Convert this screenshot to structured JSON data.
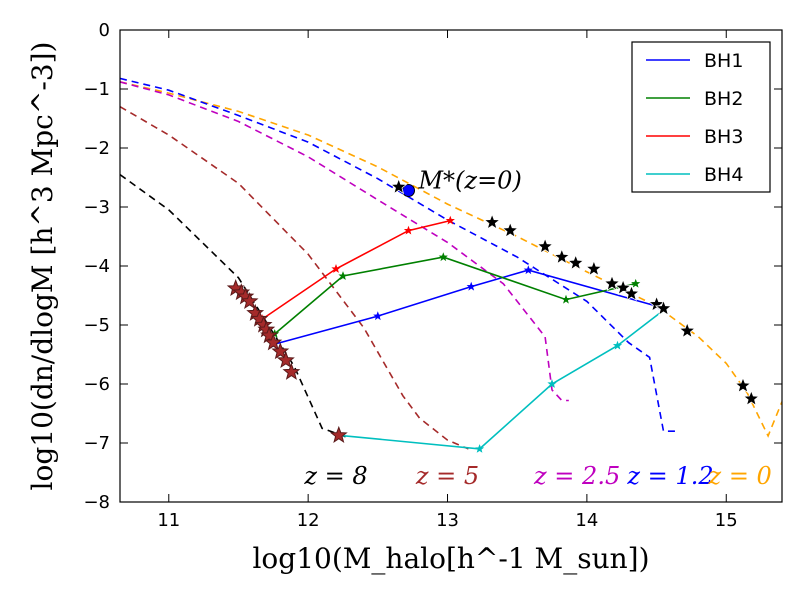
{
  "chart_data": {
    "type": "line",
    "xlabel": "log10(M_halo[h^-1 M_sun])",
    "ylabel": "log10(dn/dlogM [h^3 Mpc^-3])",
    "xlim": [
      10.65,
      15.4
    ],
    "ylim": [
      -8,
      0
    ],
    "xticks": [
      11,
      12,
      13,
      14,
      15
    ],
    "yticks": [
      0,
      -1,
      -2,
      -3,
      -4,
      -5,
      -6,
      -7,
      -8
    ],
    "xtick_labels": [
      "11",
      "12",
      "13",
      "14",
      "15"
    ],
    "ytick_labels": [
      "0",
      "−1",
      "−2",
      "−3",
      "−4",
      "−5",
      "−6",
      "−7",
      "−8"
    ],
    "annotation": {
      "text": "M*(z=0)",
      "x": 12.72,
      "y": -2.72
    },
    "mass_functions": [
      {
        "label": "z = 0",
        "color": "#ffa500",
        "points": [
          [
            10.65,
            -0.88
          ],
          [
            11,
            -1.07
          ],
          [
            11.5,
            -1.38
          ],
          [
            12,
            -1.78
          ],
          [
            12.5,
            -2.32
          ],
          [
            13,
            -2.95
          ],
          [
            13.5,
            -3.5
          ],
          [
            14,
            -4.1
          ],
          [
            14.5,
            -4.68
          ],
          [
            14.8,
            -5.2
          ],
          [
            15,
            -5.65
          ],
          [
            15.15,
            -6.15
          ],
          [
            15.3,
            -6.88
          ],
          [
            15.4,
            -6.3
          ]
        ]
      },
      {
        "label": "z = 1.2",
        "color": "#0000ff",
        "points": [
          [
            10.65,
            -0.82
          ],
          [
            11,
            -1.02
          ],
          [
            11.5,
            -1.45
          ],
          [
            12,
            -1.9
          ],
          [
            12.5,
            -2.52
          ],
          [
            13,
            -3.22
          ],
          [
            13.5,
            -3.85
          ],
          [
            14,
            -4.6
          ],
          [
            14.3,
            -5.3
          ],
          [
            14.45,
            -5.55
          ],
          [
            14.55,
            -6.8
          ],
          [
            14.65,
            -6.8
          ]
        ]
      },
      {
        "label": "z = 2.5",
        "color": "#bf00bf",
        "points": [
          [
            10.65,
            -0.88
          ],
          [
            11,
            -1.1
          ],
          [
            11.5,
            -1.55
          ],
          [
            12,
            -2.15
          ],
          [
            12.5,
            -2.88
          ],
          [
            13,
            -3.6
          ],
          [
            13.4,
            -4.3
          ],
          [
            13.7,
            -5.2
          ],
          [
            13.75,
            -6.1
          ],
          [
            13.82,
            -6.28
          ],
          [
            13.87,
            -6.28
          ]
        ]
      },
      {
        "label": "z = 5",
        "color": "#a52a2a",
        "points": [
          [
            10.65,
            -1.3
          ],
          [
            11,
            -1.78
          ],
          [
            11.5,
            -2.6
          ],
          [
            12,
            -3.8
          ],
          [
            12.4,
            -5.05
          ],
          [
            12.68,
            -6.2
          ],
          [
            12.8,
            -6.58
          ],
          [
            13.0,
            -6.95
          ],
          [
            13.15,
            -7.1
          ]
        ]
      },
      {
        "label": "z = 8",
        "color": "#000000",
        "points": [
          [
            10.65,
            -2.45
          ],
          [
            11,
            -3.05
          ],
          [
            11.5,
            -4.2
          ],
          [
            11.9,
            -5.7
          ],
          [
            12.1,
            -6.75
          ],
          [
            12.3,
            -6.92
          ]
        ]
      }
    ],
    "series": [
      {
        "name": "BH1",
        "color": "#0000ff",
        "points": [
          [
            11.75,
            -5.33
          ],
          [
            12.5,
            -4.85
          ],
          [
            13.17,
            -4.35
          ],
          [
            13.58,
            -4.07
          ],
          [
            14.5,
            -4.68
          ]
        ]
      },
      {
        "name": "BH2",
        "color": "#008000",
        "points": [
          [
            11.76,
            -5.15
          ],
          [
            12.25,
            -4.17
          ],
          [
            12.97,
            -3.85
          ],
          [
            13.85,
            -4.57
          ],
          [
            14.35,
            -4.3
          ]
        ]
      },
      {
        "name": "BH3",
        "color": "#ff0000",
        "points": [
          [
            11.67,
            -4.9
          ],
          [
            12.2,
            -4.05
          ],
          [
            12.72,
            -3.4
          ],
          [
            13.02,
            -3.23
          ]
        ]
      },
      {
        "name": "BH4",
        "color": "#00bfbf",
        "points": [
          [
            12.22,
            -6.87
          ],
          [
            13.23,
            -7.1
          ],
          [
            13.75,
            -6.0
          ],
          [
            14.22,
            -5.35
          ],
          [
            14.55,
            -4.75
          ]
        ]
      }
    ],
    "stars_brown": [
      [
        11.48,
        -4.38
      ],
      [
        11.52,
        -4.45
      ],
      [
        11.55,
        -4.52
      ],
      [
        11.58,
        -4.6
      ],
      [
        11.62,
        -4.8
      ],
      [
        11.65,
        -4.9
      ],
      [
        11.68,
        -5.0
      ],
      [
        11.7,
        -5.08
      ],
      [
        11.72,
        -5.18
      ],
      [
        11.75,
        -5.3
      ],
      [
        11.8,
        -5.45
      ],
      [
        11.84,
        -5.6
      ],
      [
        11.88,
        -5.8
      ],
      [
        12.22,
        -6.87
      ]
    ],
    "stars_black": [
      [
        12.65,
        -2.66
      ],
      [
        13.32,
        -3.26
      ],
      [
        13.45,
        -3.4
      ],
      [
        13.7,
        -3.67
      ],
      [
        13.82,
        -3.85
      ],
      [
        13.92,
        -3.95
      ],
      [
        14.05,
        -4.05
      ],
      [
        14.18,
        -4.3
      ],
      [
        14.26,
        -4.37
      ],
      [
        14.32,
        -4.47
      ],
      [
        14.5,
        -4.65
      ],
      [
        14.55,
        -4.72
      ],
      [
        14.72,
        -5.1
      ],
      [
        15.12,
        -6.03
      ],
      [
        15.18,
        -6.25
      ]
    ],
    "legend": {
      "placement": "top-right",
      "entries": [
        "BH1",
        "BH2",
        "BH3",
        "BH4"
      ]
    },
    "z_labels": [
      {
        "text": "z = 8",
        "color": "#000000",
        "x": 12.2
      },
      {
        "text": "z = 5",
        "color": "#a52a2a",
        "x": 13.0
      },
      {
        "text": "z = 2.5",
        "color": "#bf00bf",
        "x": 13.93
      },
      {
        "text": "z = 1.2",
        "color": "#0000ff",
        "x": 14.6
      },
      {
        "text": "z = 0",
        "color": "#ffa500",
        "x": 15.1
      }
    ]
  }
}
